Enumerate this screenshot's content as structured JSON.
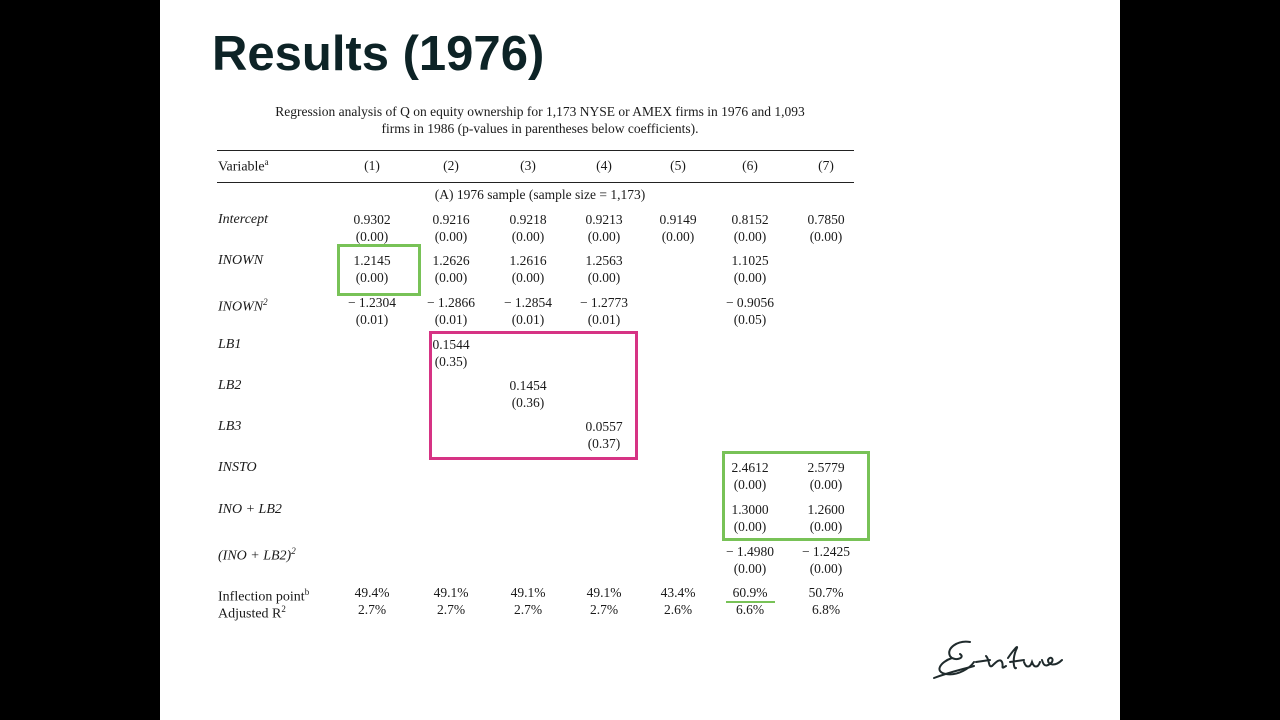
{
  "slide": {
    "title": "Results (1976)"
  },
  "table": {
    "caption_line1": "Regression analysis of Q on equity ownership for 1,173 NYSE or AMEX firms in 1976 and 1,093",
    "caption_line2": "firms in 1986 (p-values in parentheses below coefficients).",
    "variable_header": "Variable",
    "variable_header_sup": "a",
    "columns": [
      "(1)",
      "(2)",
      "(3)",
      "(4)",
      "(5)",
      "(6)",
      "(7)"
    ],
    "panel_label": "(A) 1976 sample (sample size = 1,173)",
    "rows": [
      {
        "label": "Intercept",
        "sup": "",
        "coef": [
          "0.9302",
          "0.9216",
          "0.9218",
          "0.9213",
          "0.9149",
          "0.8152",
          "0.7850"
        ],
        "p": [
          "(0.00)",
          "(0.00)",
          "(0.00)",
          "(0.00)",
          "(0.00)",
          "(0.00)",
          "(0.00)"
        ]
      },
      {
        "label": "INOWN",
        "sup": "",
        "coef": [
          "1.2145",
          "1.2626",
          "1.2616",
          "1.2563",
          "",
          "1.1025",
          ""
        ],
        "p": [
          "(0.00)",
          "(0.00)",
          "(0.00)",
          "(0.00)",
          "",
          "(0.00)",
          ""
        ]
      },
      {
        "label": "INOWN",
        "sup": "2",
        "coef": [
          "− 1.2304",
          "− 1.2866",
          "− 1.2854",
          "− 1.2773",
          "",
          "− 0.9056",
          ""
        ],
        "p": [
          "(0.01)",
          "(0.01)",
          "(0.01)",
          "(0.01)",
          "",
          "(0.05)",
          ""
        ]
      },
      {
        "label": "LB1",
        "sup": "",
        "coef": [
          "",
          "0.1544",
          "",
          "",
          "",
          "",
          ""
        ],
        "p": [
          "",
          "(0.35)",
          "",
          "",
          "",
          "",
          ""
        ]
      },
      {
        "label": "LB2",
        "sup": "",
        "coef": [
          "",
          "",
          "0.1454",
          "",
          "",
          "",
          ""
        ],
        "p": [
          "",
          "",
          "(0.36)",
          "",
          "",
          "",
          ""
        ]
      },
      {
        "label": "LB3",
        "sup": "",
        "coef": [
          "",
          "",
          "",
          "0.0557",
          "",
          "",
          ""
        ],
        "p": [
          "",
          "",
          "",
          "(0.37)",
          "",
          "",
          ""
        ]
      },
      {
        "label": "INSTO",
        "sup": "",
        "coef": [
          "",
          "",
          "",
          "",
          "",
          "2.4612",
          "2.5779"
        ],
        "p": [
          "",
          "",
          "",
          "",
          "",
          "(0.00)",
          "(0.00)"
        ]
      },
      {
        "label": "INO + LB2",
        "sup": "",
        "coef": [
          "",
          "",
          "",
          "",
          "",
          "1.3000",
          "1.2600"
        ],
        "p": [
          "",
          "",
          "",
          "",
          "",
          "(0.00)",
          "(0.00)"
        ]
      },
      {
        "label": "(INO + LB2)",
        "sup": "2",
        "coef": [
          "",
          "",
          "",
          "",
          "",
          "− 1.4980",
          "− 1.2425"
        ],
        "p": [
          "",
          "",
          "",
          "",
          "",
          "(0.00)",
          "(0.00)"
        ]
      }
    ],
    "inflection_label": "Inflection point",
    "inflection_sup": "b",
    "inflection": [
      "49.4%",
      "49.1%",
      "49.1%",
      "49.1%",
      "43.4%",
      "60.9%",
      "50.7%"
    ],
    "adjr2_label": "Adjusted R",
    "adjr2_sup": "2",
    "adjr2": [
      "2.7%",
      "2.7%",
      "2.7%",
      "2.7%",
      "2.6%",
      "6.6%",
      "6.8%"
    ]
  },
  "highlights": {
    "green_color": "#78c257",
    "pink_color": "#d63384"
  },
  "logo": {
    "name": "Erasmus signature logo",
    "icon": "signature-icon"
  }
}
